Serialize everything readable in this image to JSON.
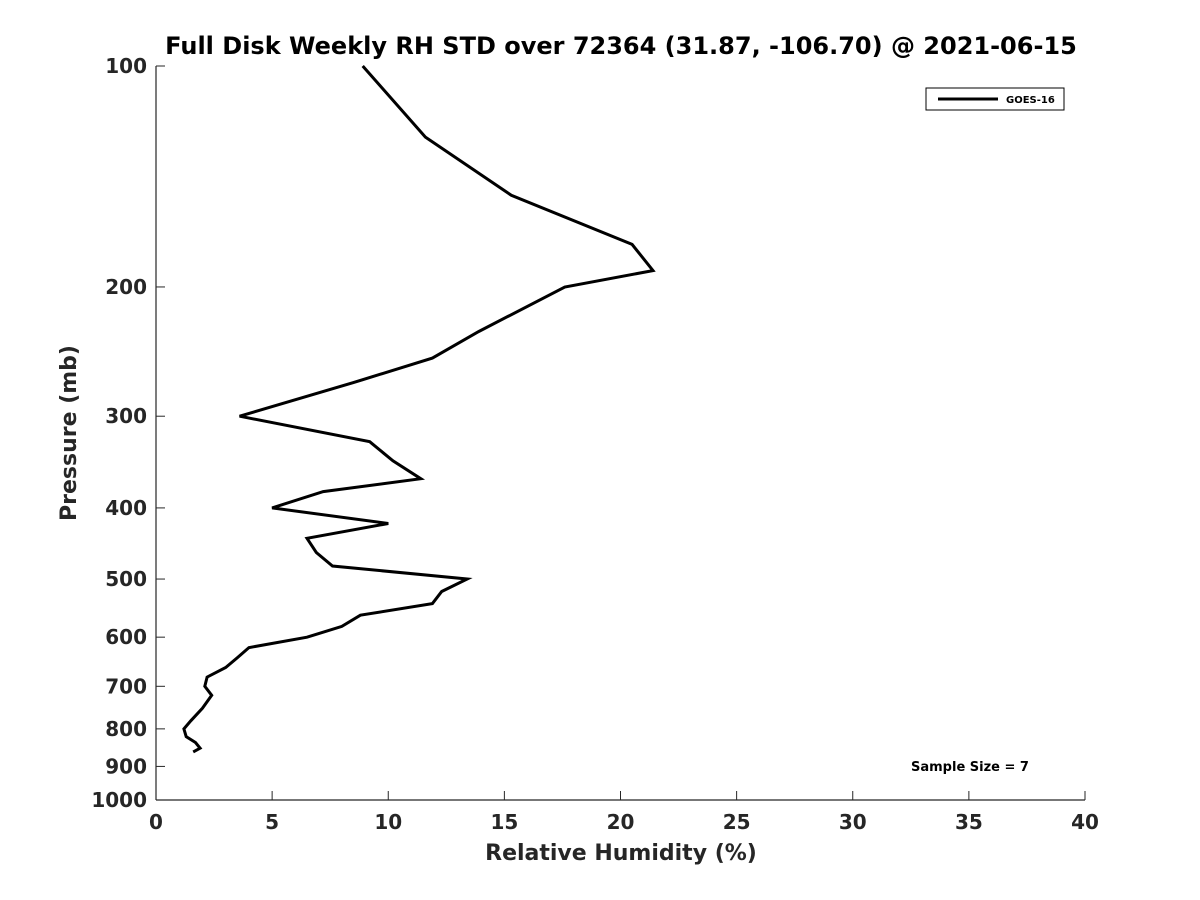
{
  "chart_data": {
    "type": "line",
    "title": "Full Disk Weekly RH STD over 72364 (31.87, -106.70) @ 2021-06-15",
    "xlabel": "Relative Humidity (%)",
    "ylabel": "Pressure (mb)",
    "xlim": [
      0,
      40
    ],
    "ylim": [
      100,
      1000
    ],
    "y_scale": "log",
    "y_reversed": true,
    "xticks": [
      0,
      5,
      10,
      15,
      20,
      25,
      30,
      35,
      40
    ],
    "yticks": [
      100,
      200,
      300,
      400,
      500,
      600,
      700,
      800,
      900,
      1000
    ],
    "legend": {
      "position": "top-right",
      "entries": [
        "GOES-16"
      ]
    },
    "annotation": "Sample Size = 7",
    "series": [
      {
        "name": "GOES-16",
        "color": "#000000",
        "points": [
          {
            "x": 8.9,
            "y": 100
          },
          {
            "x": 11.6,
            "y": 125
          },
          {
            "x": 15.3,
            "y": 150
          },
          {
            "x": 20.5,
            "y": 175
          },
          {
            "x": 21.4,
            "y": 190
          },
          {
            "x": 17.6,
            "y": 200
          },
          {
            "x": 13.9,
            "y": 230
          },
          {
            "x": 11.9,
            "y": 250
          },
          {
            "x": 8.5,
            "y": 270
          },
          {
            "x": 3.6,
            "y": 300
          },
          {
            "x": 9.2,
            "y": 325
          },
          {
            "x": 10.2,
            "y": 345
          },
          {
            "x": 11.4,
            "y": 365
          },
          {
            "x": 7.2,
            "y": 380
          },
          {
            "x": 5.0,
            "y": 400
          },
          {
            "x": 10.0,
            "y": 420
          },
          {
            "x": 6.5,
            "y": 440
          },
          {
            "x": 6.9,
            "y": 460
          },
          {
            "x": 7.6,
            "y": 480
          },
          {
            "x": 13.4,
            "y": 500
          },
          {
            "x": 12.3,
            "y": 520
          },
          {
            "x": 11.9,
            "y": 540
          },
          {
            "x": 8.8,
            "y": 560
          },
          {
            "x": 8.0,
            "y": 580
          },
          {
            "x": 6.5,
            "y": 600
          },
          {
            "x": 4.0,
            "y": 620
          },
          {
            "x": 3.5,
            "y": 640
          },
          {
            "x": 3.0,
            "y": 660
          },
          {
            "x": 2.2,
            "y": 680
          },
          {
            "x": 2.1,
            "y": 700
          },
          {
            "x": 2.4,
            "y": 720
          },
          {
            "x": 2.0,
            "y": 750
          },
          {
            "x": 1.5,
            "y": 780
          },
          {
            "x": 1.2,
            "y": 800
          },
          {
            "x": 1.3,
            "y": 820
          },
          {
            "x": 1.7,
            "y": 835
          },
          {
            "x": 1.9,
            "y": 850
          },
          {
            "x": 1.6,
            "y": 860
          }
        ]
      }
    ]
  }
}
